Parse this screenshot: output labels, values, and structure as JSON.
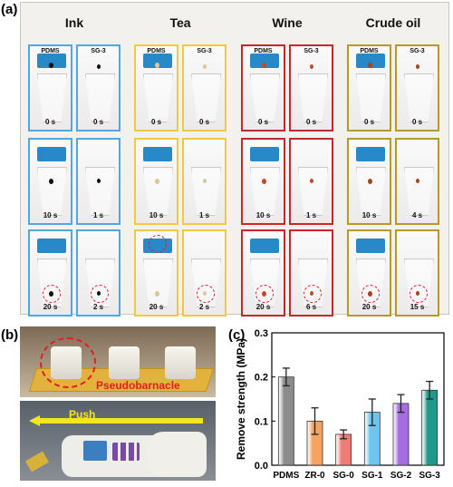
{
  "panel_labels": {
    "a": "(a)",
    "b": "(b)",
    "c": "(c)"
  },
  "groups": [
    {
      "name": "Ink",
      "color": "#4fa8df",
      "left_label": "PDMS",
      "right_label": "SG-3",
      "drop_color": "#111111",
      "rows": [
        [
          "0 s",
          "0 s"
        ],
        [
          "10 s",
          "1 s"
        ],
        [
          "20 s",
          "2 s"
        ]
      ]
    },
    {
      "name": "Tea",
      "color": "#f0c93d",
      "left_label": "PDMS",
      "right_label": "SG-3",
      "drop_color": "#d9c79a",
      "rows": [
        [
          "0 s",
          "0 s"
        ],
        [
          "10 s",
          "1 s"
        ],
        [
          "20 s",
          "2 s"
        ]
      ]
    },
    {
      "name": "Wine",
      "color": "#c7262d",
      "left_label": "PDMS",
      "right_label": "SG-3",
      "drop_color": "#c0492f",
      "rows": [
        [
          "0 s",
          "0 s"
        ],
        [
          "10 s",
          "1 s"
        ],
        [
          "20 s",
          "6 s"
        ]
      ]
    },
    {
      "name": "Crude oil",
      "color": "#b59a2a",
      "left_label": "PDMS",
      "right_label": "SG-3",
      "drop_color": "#a8441d",
      "rows": [
        [
          "0 s",
          "0 s"
        ],
        [
          "10 s",
          "4 s"
        ],
        [
          "20 s",
          "15 s"
        ]
      ]
    }
  ],
  "photo_b": {
    "pseudobarnacle": "Pseudobarnacle",
    "push": "Push"
  },
  "colors": {
    "dashed_ring": "#e01e25",
    "pdms_cap": "#2789c8",
    "push_arrow": "#f5e51e"
  },
  "chart_data": {
    "type": "bar",
    "categories": [
      "PDMS",
      "ZR-0",
      "SG-0",
      "SG-1",
      "SG-2",
      "SG-3"
    ],
    "values": [
      0.2,
      0.1,
      0.07,
      0.12,
      0.14,
      0.17
    ],
    "errors": [
      0.02,
      0.03,
      0.01,
      0.03,
      0.02,
      0.02
    ],
    "colors": [
      "#8c8c8c",
      "#f4a460",
      "#f07c78",
      "#6cc6ee",
      "#a56de2",
      "#1f9a8a"
    ],
    "ylabel": "Remove strength (MPa)",
    "xlabel": "",
    "ylim": [
      0.0,
      0.3
    ],
    "yticks": [
      "0.0",
      "0.1",
      "0.2",
      "0.3"
    ],
    "grid": false
  }
}
